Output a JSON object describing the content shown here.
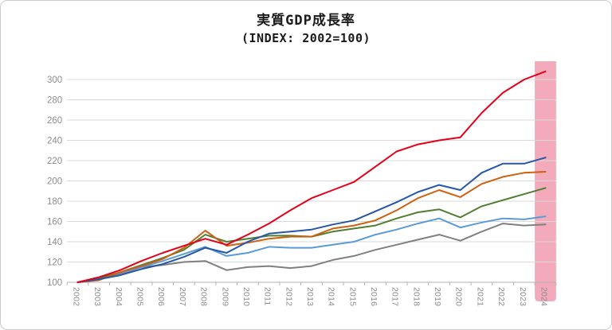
{
  "header": {
    "title_line1": "実質GDP成長率",
    "title_line2": "(INDEX: 2002=100)"
  },
  "chart_data": {
    "type": "line",
    "title": "実質GDP成長率",
    "subtitle": "(INDEX: 2002=100)",
    "categories": [
      "2002",
      "2003",
      "2004",
      "2005",
      "2006",
      "2007",
      "2008",
      "2009",
      "2010",
      "2011",
      "2012",
      "2013",
      "2014",
      "2015",
      "2016",
      "2017",
      "2018",
      "2019",
      "2020",
      "2021",
      "2022",
      "2023",
      "2024"
    ],
    "series": [
      {
        "name": "series-red",
        "color": "#e50019",
        "values": [
          100,
          105,
          112,
          121,
          129,
          136,
          143,
          137,
          147,
          158,
          171,
          183,
          191,
          199,
          214,
          229,
          236,
          240,
          243,
          267,
          287,
          300,
          308
        ]
      },
      {
        "name": "series-dark-blue",
        "color": "#2657a7",
        "values": [
          100,
          103,
          107,
          113,
          118,
          125,
          134,
          129,
          140,
          148,
          150,
          152,
          157,
          161,
          170,
          179,
          189,
          196,
          191,
          208,
          217,
          217,
          223
        ]
      },
      {
        "name": "series-orange",
        "color": "#cf600f",
        "values": [
          100,
          102,
          110,
          116,
          123,
          134,
          151,
          136,
          139,
          143,
          145,
          145,
          153,
          156,
          161,
          171,
          183,
          191,
          184,
          197,
          204,
          208,
          209
        ]
      },
      {
        "name": "series-green",
        "color": "#507e32",
        "values": [
          100,
          104,
          110,
          117,
          124,
          132,
          147,
          140,
          143,
          146,
          146,
          145,
          150,
          153,
          156,
          163,
          169,
          172,
          164,
          175,
          181,
          187,
          193
        ]
      },
      {
        "name": "series-light-blue",
        "color": "#5b9bd5",
        "values": [
          100,
          104,
          109,
          115,
          121,
          128,
          135,
          126,
          129,
          135,
          134,
          134,
          137,
          140,
          147,
          152,
          158,
          163,
          154,
          159,
          163,
          162,
          165
        ]
      },
      {
        "name": "series-gray",
        "color": "#808080",
        "values": [
          100,
          103,
          108,
          115,
          117,
          120,
          121,
          112,
          115,
          116,
          114,
          116,
          122,
          126,
          132,
          137,
          142,
          147,
          141,
          150,
          158,
          156,
          157
        ]
      }
    ],
    "ylim": [
      100,
      310
    ],
    "yticks": [
      "100",
      "120",
      "140",
      "160",
      "180",
      "200",
      "220",
      "240",
      "260",
      "280",
      "300"
    ],
    "grid": true,
    "legend": "none",
    "highlight": {
      "category": "2024",
      "color": "#f3aabb"
    },
    "axis_color": "#b3b3b3",
    "gridline_color": "#d9d9d9",
    "tick_label_color": "#8c8c8c"
  }
}
